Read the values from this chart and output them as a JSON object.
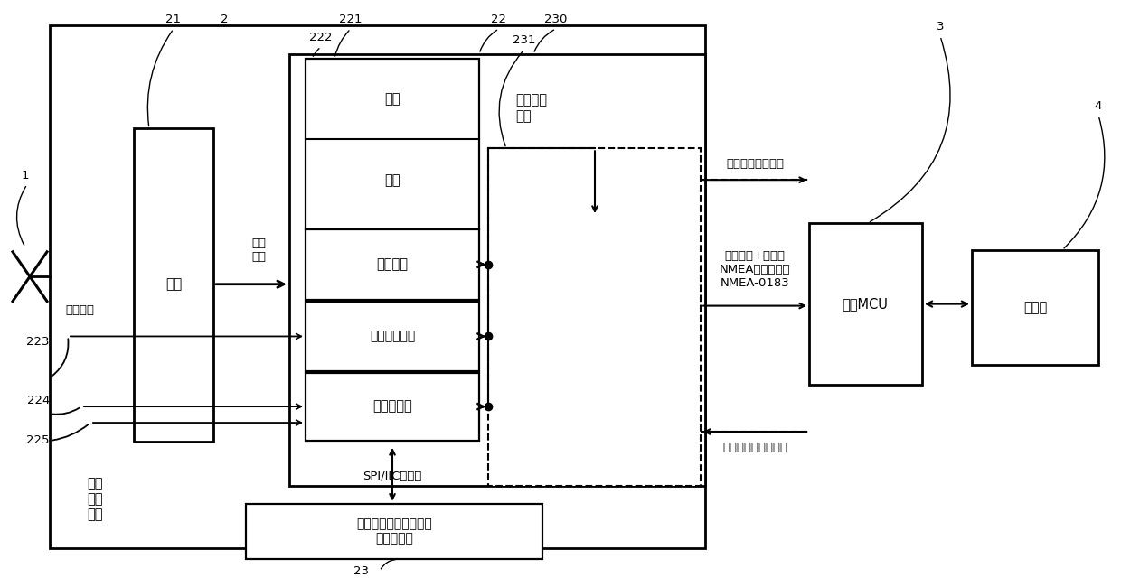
{
  "fig_w": 12.4,
  "fig_h": 6.4,
  "texts": {
    "antenna_input": "天线输入",
    "rf": "射频",
    "if_signal": "中频\n信号",
    "capture": "捕获",
    "track": "跟踪",
    "position_solve": "定位解算",
    "inertial_calc": "惯性导航推算",
    "sensor_data_box": "传感器数据",
    "baseband": "基带处理\n单元",
    "spi_iic": "SPI/IIC等接口",
    "sensor_unit": "速度、加速度、方向等\n传感器单元",
    "nav_recv_module": "导航\n接收\n模块",
    "inertial_enable": "惯性导航使能信号",
    "nav_msg": "导航报文+自定义\nNMEA传感器信息\nNMEA-0183",
    "sensor_enable": "传感器数据使能信号",
    "user_mcu": "用户MCU",
    "client": "客户端",
    "n1": "1",
    "n2": "2",
    "n3": "3",
    "n4": "4",
    "n21": "21",
    "n22": "22",
    "n221": "221",
    "n222": "222",
    "n223": "223",
    "n224": "224",
    "n225": "225",
    "n23": "23",
    "n230": "230",
    "n231": "231"
  }
}
